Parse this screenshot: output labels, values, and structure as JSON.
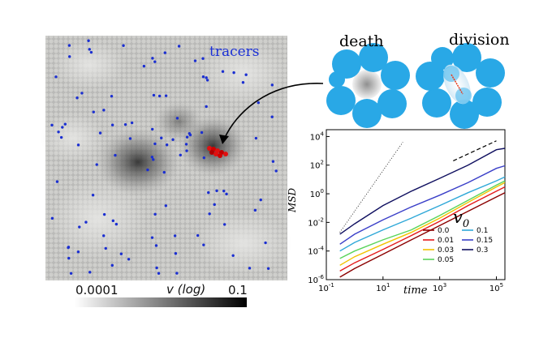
{
  "simulation": {
    "tracers_label": "tracers",
    "colorbar": {
      "min_label": "0.0001",
      "max_label": "0.1",
      "title": "v (log)"
    }
  },
  "schematic": {
    "death_label": "death",
    "division_label": "division"
  },
  "chart_data": {
    "type": "line",
    "xlabel": "time",
    "ylabel": "MSD",
    "xscale": "log",
    "yscale": "log",
    "xlim": [
      0.1,
      200000
    ],
    "ylim": [
      1e-06,
      30000
    ],
    "x_ticks": [
      {
        "value": 0.1,
        "label": "10^-1"
      },
      {
        "value": 10,
        "label": "10^1"
      },
      {
        "value": 1000,
        "label": "10^3"
      },
      {
        "value": 100000,
        "label": "10^5"
      }
    ],
    "y_ticks": [
      {
        "value": 1e-06,
        "label": "10^-6"
      },
      {
        "value": 0.0001,
        "label": "10^-4"
      },
      {
        "value": 0.01,
        "label": "10^-2"
      },
      {
        "value": 1,
        "label": "10^0"
      },
      {
        "value": 100,
        "label": "10^2"
      },
      {
        "value": 10000,
        "label": "10^4"
      }
    ],
    "legend_title": "v0",
    "series": [
      {
        "name": "0.0",
        "color": "#8b0000",
        "x": [
          0.3,
          1,
          10,
          100,
          1000,
          10000,
          100000,
          200000
        ],
        "y": [
          1.5e-06,
          6e-06,
          6e-05,
          0.0006,
          0.006,
          0.06,
          0.6,
          1.2
        ]
      },
      {
        "name": "0.01",
        "color": "#e41a1c",
        "x": [
          0.3,
          1,
          10,
          100,
          1000,
          10000,
          100000,
          200000
        ],
        "y": [
          4e-06,
          1.5e-05,
          0.00013,
          0.0012,
          0.012,
          0.15,
          1.5,
          3
        ]
      },
      {
        "name": "0.03",
        "color": "#f2c200",
        "x": [
          0.3,
          1,
          10,
          100,
          1000,
          10000,
          100000,
          200000
        ],
        "y": [
          1e-05,
          4e-05,
          0.0003,
          0.002,
          0.02,
          0.25,
          3,
          6
        ]
      },
      {
        "name": "0.05",
        "color": "#5ad45a",
        "x": [
          0.3,
          1,
          10,
          100,
          1000,
          10000,
          100000,
          200000
        ],
        "y": [
          3e-05,
          0.0001,
          0.0006,
          0.003,
          0.03,
          0.35,
          4,
          8
        ]
      },
      {
        "name": "0.1",
        "color": "#2fa8d8",
        "x": [
          0.3,
          1,
          10,
          100,
          1000,
          10000,
          100000,
          200000
        ],
        "y": [
          0.0001,
          0.0004,
          0.003,
          0.02,
          0.15,
          1.2,
          8,
          15
        ]
      },
      {
        "name": "0.15",
        "color": "#3a3fc8",
        "x": [
          0.3,
          1,
          10,
          100,
          1000,
          10000,
          100000,
          200000
        ],
        "y": [
          0.0003,
          0.0015,
          0.015,
          0.12,
          0.8,
          6,
          60,
          90
        ]
      },
      {
        "name": "0.3",
        "color": "#101060",
        "x": [
          0.3,
          1,
          10,
          100,
          1000,
          10000,
          100000,
          200000
        ],
        "y": [
          0.0015,
          0.008,
          0.15,
          1.5,
          12,
          100,
          1200,
          1500
        ]
      }
    ],
    "guides": [
      {
        "name": "slope-2",
        "style": "dotted",
        "x": [
          0.3,
          50
        ],
        "y": [
          0.002,
          4000
        ]
      },
      {
        "name": "slope-1",
        "style": "dashed",
        "x": [
          3000,
          100000
        ],
        "y": [
          200,
          5000
        ]
      }
    ]
  }
}
